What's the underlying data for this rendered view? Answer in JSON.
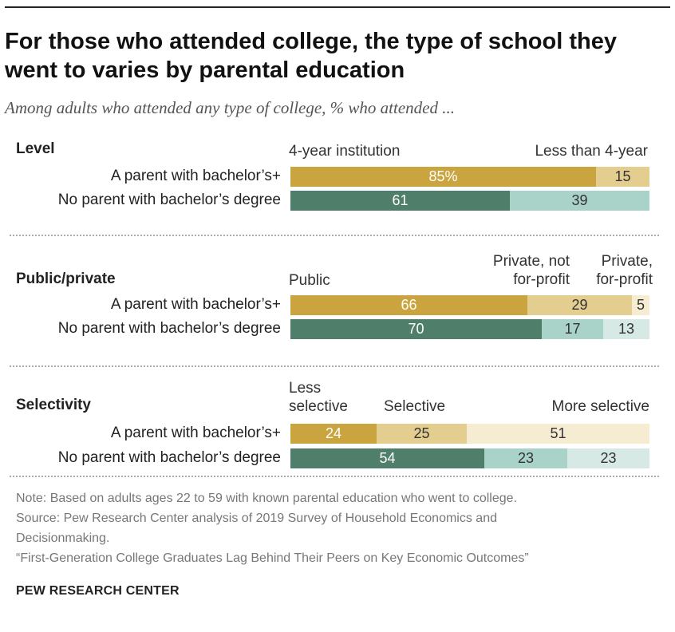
{
  "title": "For those who attended college, the type of school they went to varies by parental education",
  "subtitle": "Among adults who attended any type of college, % who attended ...",
  "chart_data": [
    {
      "type": "bar",
      "orientation": "horizontal",
      "stacked": true,
      "section": "Level",
      "categories": [
        "A parent with bachelor’s+",
        "No parent with bachelor’s degree"
      ],
      "series": [
        {
          "name": "4-year institution",
          "values": [
            85,
            61
          ]
        },
        {
          "name": "Less than 4-year",
          "values": [
            15,
            39
          ]
        }
      ],
      "labels": [
        [
          "85%",
          "15"
        ],
        [
          "61",
          "39"
        ]
      ]
    },
    {
      "type": "bar",
      "orientation": "horizontal",
      "stacked": true,
      "section": "Public/private",
      "categories": [
        "A parent with bachelor’s+",
        "No parent with bachelor’s degree"
      ],
      "series": [
        {
          "name": "Public",
          "values": [
            66,
            70
          ]
        },
        {
          "name": "Private, not for-profit",
          "values": [
            29,
            17
          ]
        },
        {
          "name": "Private, for-profit",
          "values": [
            5,
            13
          ]
        }
      ],
      "labels": [
        [
          "66",
          "29",
          "5"
        ],
        [
          "70",
          "17",
          "13"
        ]
      ]
    },
    {
      "type": "bar",
      "orientation": "horizontal",
      "stacked": true,
      "section": "Selectivity",
      "categories": [
        "A parent with bachelor’s+",
        "No parent with bachelor’s degree"
      ],
      "series": [
        {
          "name": "Less selective",
          "values": [
            24,
            54
          ]
        },
        {
          "name": "Selective",
          "values": [
            25,
            23
          ]
        },
        {
          "name": "More selective",
          "values": [
            51,
            23
          ]
        }
      ],
      "labels": [
        [
          "24",
          "25",
          "51"
        ],
        [
          "54",
          "23",
          "23"
        ]
      ]
    }
  ],
  "sections": [
    {
      "label": "Level",
      "headers": [
        "4-year institution",
        "Less than 4-year"
      ],
      "rows": [
        "A parent with bachelor’s+",
        "No parent with bachelor’s degree"
      ]
    },
    {
      "label": "Public/private",
      "headers": [
        "Public",
        "Private, not for-profit",
        "Private, for-profit"
      ],
      "headers_lines": [
        [
          "Public"
        ],
        [
          "Private, not",
          "for-profit"
        ],
        [
          "Private,",
          "for-profit"
        ]
      ],
      "rows": [
        "A parent with bachelor’s+",
        "No parent with bachelor’s degree"
      ]
    },
    {
      "label": "Selectivity",
      "headers": [
        "Less selective",
        "Selective",
        "More selective"
      ],
      "headers_lines": [
        [
          "Less",
          "selective"
        ],
        [
          "Selective"
        ],
        [
          "More selective"
        ]
      ],
      "rows": [
        "A parent with bachelor’s+",
        "No parent with bachelor’s degree"
      ]
    }
  ],
  "colors": {
    "bach_dark": "#c9a43f",
    "bach_mid": "#e3cd8f",
    "bach_light": "#f5ecd2",
    "nobach_dark": "#4f7f6b",
    "nobach_mid": "#a9d2c9",
    "nobach_light": "#d6e9e5"
  },
  "notes": {
    "note": "Note: Based on adults ages 22 to 59 with known parental education who went to college.",
    "source": "Source: Pew Research Center analysis of 2019 Survey of Household Economics and",
    "source2": "Decisionmaking.",
    "report": "“First-Generation College Graduates Lag Behind Their Peers on Key Economic Outcomes”"
  },
  "brand": "PEW RESEARCH CENTER"
}
